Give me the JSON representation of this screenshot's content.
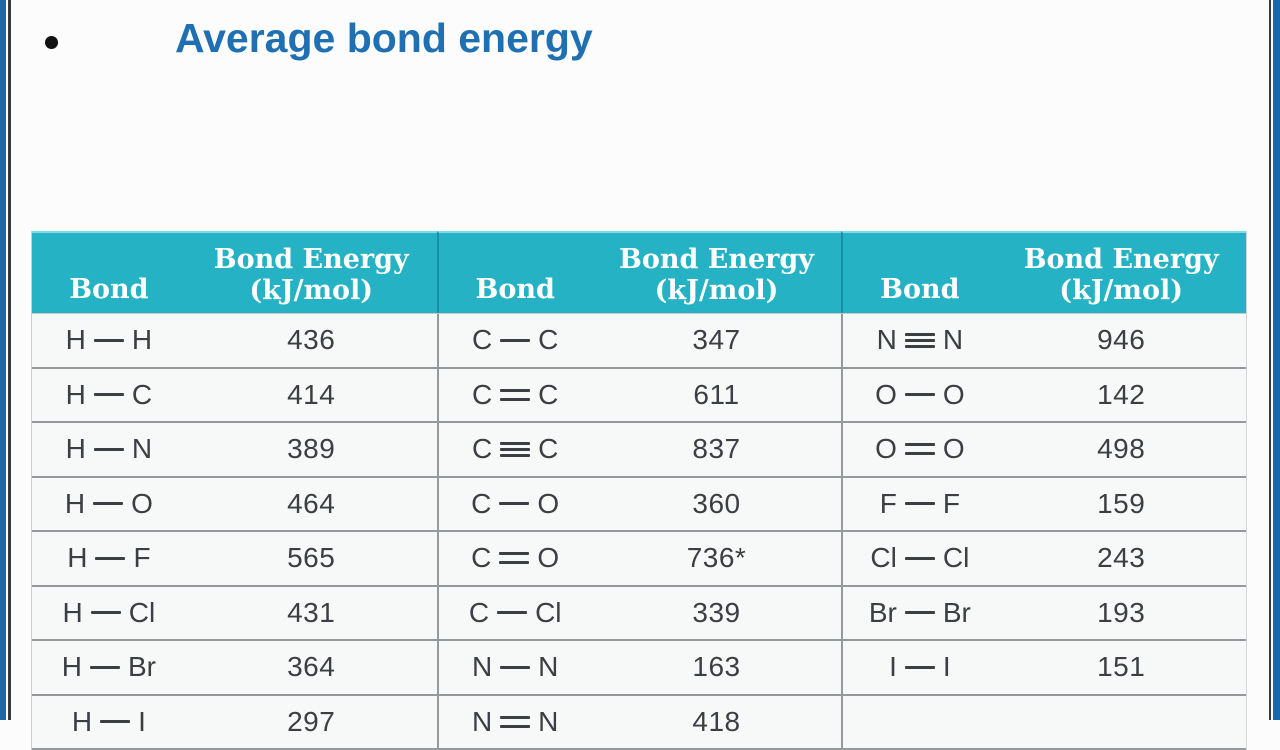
{
  "slide": {
    "title": "Average bond energy"
  },
  "table": {
    "header": {
      "bond": "Bond",
      "energy_line1": "Bond Energy",
      "energy_line2": "(kJ/mol)"
    },
    "groups": [
      {
        "rows": [
          {
            "a": "H",
            "type": "single",
            "b": "H",
            "energy": "436"
          },
          {
            "a": "H",
            "type": "single",
            "b": "C",
            "energy": "414"
          },
          {
            "a": "H",
            "type": "single",
            "b": "N",
            "energy": "389"
          },
          {
            "a": "H",
            "type": "single",
            "b": "O",
            "energy": "464"
          },
          {
            "a": "H",
            "type": "single",
            "b": "F",
            "energy": "565"
          },
          {
            "a": "H",
            "type": "single",
            "b": "Cl",
            "energy": "431"
          },
          {
            "a": "H",
            "type": "single",
            "b": "Br",
            "energy": "364"
          },
          {
            "a": "H",
            "type": "single",
            "b": "I",
            "energy": "297"
          }
        ]
      },
      {
        "rows": [
          {
            "a": "C",
            "type": "single",
            "b": "C",
            "energy": "347"
          },
          {
            "a": "C",
            "type": "double",
            "b": "C",
            "energy": "611"
          },
          {
            "a": "C",
            "type": "triple",
            "b": "C",
            "energy": "837"
          },
          {
            "a": "C",
            "type": "single",
            "b": "O",
            "energy": "360"
          },
          {
            "a": "C",
            "type": "double",
            "b": "O",
            "energy": "736*"
          },
          {
            "a": "C",
            "type": "single",
            "b": "Cl",
            "energy": "339"
          },
          {
            "a": "N",
            "type": "single",
            "b": "N",
            "energy": "163"
          },
          {
            "a": "N",
            "type": "double",
            "b": "N",
            "energy": "418"
          }
        ]
      },
      {
        "rows": [
          {
            "a": "N",
            "type": "triple",
            "b": "N",
            "energy": "946"
          },
          {
            "a": "O",
            "type": "single",
            "b": "O",
            "energy": "142"
          },
          {
            "a": "O",
            "type": "double",
            "b": "O",
            "energy": "498"
          },
          {
            "a": "F",
            "type": "single",
            "b": "F",
            "energy": "159"
          },
          {
            "a": "Cl",
            "type": "single",
            "b": "Cl",
            "energy": "243"
          },
          {
            "a": "Br",
            "type": "single",
            "b": "Br",
            "energy": "193"
          },
          {
            "a": "I",
            "type": "single",
            "b": "I",
            "energy": "151"
          },
          {
            "a": "",
            "type": "none",
            "b": "",
            "energy": ""
          }
        ]
      }
    ]
  },
  "colors": {
    "header_teal": "#25b2c4",
    "header_teal_highlight": "#7bdce7",
    "header_divider_teal": "#1691a4",
    "title_blue": "#1f70b3",
    "edge_blue": "#1b67ab",
    "edge_dark": "#35393c",
    "row_divider_gray": "#96999b",
    "text_gray": "#3b3e42",
    "row_background": "#f7f8f8"
  }
}
